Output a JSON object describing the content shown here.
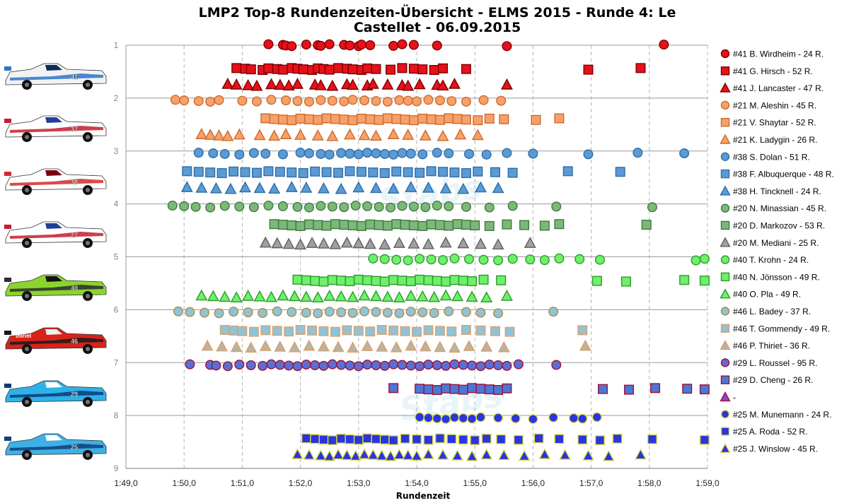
{
  "chart_data": {
    "type": "scatter",
    "title_line1": "LMP2 Top-8 Rundenzeiten-Übersicht - ELMS 2015 - Runde 4: Le",
    "title_line2": "Castellet - 06.09.2015",
    "xlabel": "Rundenzeit",
    "ylabel": "",
    "x_unit": "s",
    "xlim": [
      109,
      119
    ],
    "ylim": [
      1,
      9
    ],
    "y_reversed": true,
    "grid": true,
    "x_ticks": [
      "1:49,0",
      "1:50,0",
      "1:51,0",
      "1:52,0",
      "1:53,0",
      "1:54,0",
      "1:55,0",
      "1:56,0",
      "1:57,0",
      "1:58,0",
      "1:59,0"
    ],
    "y_ticks": [
      "1",
      "2",
      "3",
      "4",
      "5",
      "6",
      "7",
      "8",
      "9"
    ],
    "legend_position": "right",
    "watermark": "Stabs",
    "series": [
      {
        "name": "#41 B. Wirdheim - 24 R.",
        "y": 1.0,
        "marker": "circle",
        "fill": "#e8101a",
        "stroke": "#7a0000",
        "x": [
          111.45,
          111.7,
          111.75,
          111.85,
          112.1,
          112.3,
          112.35,
          112.5,
          112.75,
          112.85,
          113.0,
          113.05,
          113.2,
          113.6,
          113.75,
          113.95,
          114.35,
          115.55,
          118.25
        ]
      },
      {
        "name": "#41 G. Hirsch - 52 R.",
        "y": 1.45,
        "marker": "square",
        "fill": "#e8101a",
        "stroke": "#7a0000",
        "x": [
          110.9,
          111.05,
          111.15,
          111.35,
          111.45,
          111.6,
          111.7,
          111.85,
          111.95,
          112.05,
          112.2,
          112.3,
          112.4,
          112.5,
          112.65,
          112.8,
          112.9,
          113.05,
          113.15,
          113.3,
          113.55,
          113.75,
          113.95,
          114.1,
          114.3,
          114.45,
          114.85,
          116.95,
          117.85
        ]
      },
      {
        "name": "#41 J. Lancaster - 47 R.",
        "y": 1.75,
        "marker": "triangle",
        "fill": "#e8101a",
        "stroke": "#7a0000",
        "x": [
          110.75,
          110.9,
          111.1,
          111.25,
          111.5,
          111.65,
          111.8,
          111.95,
          112.25,
          112.35,
          112.55,
          112.8,
          112.9,
          113.15,
          113.25,
          113.5,
          113.75,
          113.85,
          114.05,
          114.35,
          114.45,
          114.65,
          115.55
        ]
      },
      {
        "name": "#21 M. Aleshin - 45 R.",
        "y": 2.05,
        "marker": "circle",
        "fill": "#f7a06a",
        "stroke": "#cc6b2a",
        "x": [
          109.85,
          110.0,
          110.25,
          110.45,
          110.6,
          111.0,
          111.25,
          111.5,
          111.75,
          111.95,
          112.15,
          112.35,
          112.55,
          112.75,
          112.9,
          113.1,
          113.3,
          113.5,
          113.7,
          113.85,
          114.0,
          114.2,
          114.4,
          114.6,
          114.85,
          115.15,
          115.45
        ]
      },
      {
        "name": "#21 V. Shaytar - 52 R.",
        "y": 2.4,
        "marker": "square",
        "fill": "#f7a06a",
        "stroke": "#cc6b2a",
        "x": [
          111.4,
          111.55,
          111.7,
          111.85,
          112.0,
          112.15,
          112.3,
          112.45,
          112.6,
          112.75,
          112.9,
          113.05,
          113.2,
          113.35,
          113.5,
          113.65,
          113.8,
          113.95,
          114.1,
          114.25,
          114.4,
          114.55,
          114.7,
          114.85,
          115.05,
          115.25,
          115.5,
          116.05,
          116.45
        ]
      },
      {
        "name": "#21 K. Ladygin - 26 R.",
        "y": 2.7,
        "marker": "triangle",
        "fill": "#f7a06a",
        "stroke": "#cc6b2a",
        "x": [
          110.3,
          110.45,
          110.6,
          110.75,
          110.95,
          111.3,
          111.55,
          111.75,
          112.0,
          112.3,
          112.55,
          112.85,
          113.1,
          113.3,
          113.6,
          113.85,
          114.15,
          114.45,
          114.75,
          115.05
        ]
      },
      {
        "name": "#38 S. Dolan - 51 R.",
        "y": 3.05,
        "marker": "circle",
        "fill": "#5b9bd5",
        "stroke": "#2e6da4",
        "x": [
          110.25,
          110.5,
          110.7,
          110.95,
          111.2,
          111.4,
          111.7,
          112.0,
          112.15,
          112.35,
          112.5,
          112.7,
          112.85,
          113.0,
          113.15,
          113.3,
          113.45,
          113.6,
          113.75,
          113.9,
          114.1,
          114.35,
          114.55,
          114.9,
          115.2,
          115.55,
          116.0,
          116.95,
          117.8,
          118.6
        ]
      },
      {
        "name": "#38 F. Albuquerque - 48 R.",
        "y": 3.4,
        "marker": "square",
        "fill": "#5b9bd5",
        "stroke": "#2e6da4",
        "x": [
          110.05,
          110.25,
          110.45,
          110.65,
          110.85,
          111.05,
          111.25,
          111.45,
          111.65,
          111.85,
          112.05,
          112.25,
          112.45,
          112.65,
          112.85,
          113.05,
          113.25,
          113.45,
          113.65,
          113.85,
          114.05,
          114.25,
          114.45,
          114.65,
          114.85,
          115.05,
          115.35,
          115.65,
          116.6,
          117.5
        ]
      },
      {
        "name": "#38 H. Tincknell - 24 R.",
        "y": 3.7,
        "marker": "triangle",
        "fill": "#5b9bd5",
        "stroke": "#2e6da4",
        "x": [
          110.05,
          110.3,
          110.55,
          110.8,
          111.05,
          111.3,
          111.55,
          111.85,
          112.1,
          112.4,
          112.7,
          113.0,
          113.3,
          113.6,
          113.9,
          114.2,
          114.5,
          114.8,
          115.1,
          115.4
        ]
      },
      {
        "name": "#20 N. Minassian - 45 R.",
        "y": 4.05,
        "marker": "circle",
        "fill": "#7bb87a",
        "stroke": "#3d7a3c",
        "x": [
          109.8,
          110.0,
          110.2,
          110.45,
          110.7,
          110.95,
          111.2,
          111.45,
          111.7,
          111.95,
          112.15,
          112.35,
          112.55,
          112.75,
          112.95,
          113.15,
          113.35,
          113.55,
          113.75,
          113.95,
          114.15,
          114.35,
          114.55,
          114.85,
          115.25,
          115.65,
          116.4,
          118.05
        ]
      },
      {
        "name": "#20 D. Markozov - 53 R.",
        "y": 4.4,
        "marker": "square",
        "fill": "#7bb87a",
        "stroke": "#3d7a3c",
        "x": [
          111.55,
          111.7,
          111.85,
          112.0,
          112.15,
          112.3,
          112.45,
          112.6,
          112.75,
          112.9,
          113.05,
          113.2,
          113.35,
          113.5,
          113.65,
          113.8,
          113.95,
          114.1,
          114.25,
          114.4,
          114.55,
          114.7,
          114.85,
          115.0,
          115.25,
          115.55,
          115.85,
          116.2,
          116.45,
          117.95
        ]
      },
      {
        "name": "#20 M. Mediani - 25 R.",
        "y": 4.75,
        "marker": "triangle",
        "fill": "#a0a0a0",
        "stroke": "#5f5f5f",
        "x": [
          111.4,
          111.6,
          111.8,
          112.0,
          112.2,
          112.4,
          112.6,
          112.8,
          113.0,
          113.2,
          113.45,
          113.7,
          113.95,
          114.2,
          114.5,
          114.8,
          115.1,
          115.4,
          115.95
        ]
      },
      {
        "name": "#40 T. Krohn - 24 R.",
        "y": 5.05,
        "marker": "circle",
        "fill": "#6ef06a",
        "stroke": "#2a9a2a",
        "x": [
          113.25,
          113.45,
          113.65,
          113.85,
          114.05,
          114.25,
          114.45,
          114.65,
          114.9,
          115.15,
          115.4,
          115.65,
          115.95,
          116.2,
          116.45,
          116.8,
          117.15,
          118.8,
          118.95
        ]
      },
      {
        "name": "#40 N. Jönsson - 49 R.",
        "y": 5.45,
        "marker": "square",
        "fill": "#6ef06a",
        "stroke": "#2a9a2a",
        "x": [
          111.95,
          112.1,
          112.25,
          112.4,
          112.55,
          112.7,
          112.85,
          113.0,
          113.15,
          113.3,
          113.45,
          113.6,
          113.75,
          113.9,
          114.05,
          114.2,
          114.35,
          114.5,
          114.65,
          114.8,
          114.95,
          115.15,
          115.45,
          117.1,
          117.6,
          118.6,
          118.95
        ]
      },
      {
        "name": "#40 O. Pla - 49 R.",
        "y": 5.75,
        "marker": "triangle",
        "fill": "#6ef06a",
        "stroke": "#2a9a2a",
        "x": [
          110.3,
          110.5,
          110.7,
          110.9,
          111.1,
          111.3,
          111.5,
          111.7,
          111.9,
          112.1,
          112.3,
          112.5,
          112.7,
          112.9,
          113.1,
          113.3,
          113.5,
          113.7,
          113.9,
          114.1,
          114.3,
          114.5,
          114.7,
          114.95,
          115.2,
          115.55
        ]
      },
      {
        "name": "#46 L. Badey - 37 R.",
        "y": 6.05,
        "marker": "circle",
        "fill": "#8fc3d6",
        "stroke": "#b08a45",
        "x": [
          109.9,
          110.1,
          110.35,
          110.6,
          110.85,
          111.1,
          111.35,
          111.6,
          111.85,
          112.1,
          112.3,
          112.5,
          112.7,
          112.9,
          113.1,
          113.3,
          113.5,
          113.7,
          113.9,
          114.1,
          114.3,
          114.55,
          114.85,
          115.1,
          115.4,
          116.35
        ]
      },
      {
        "name": "#46 T. Gommendy - 49 R.",
        "y": 6.4,
        "marker": "square",
        "fill": "#8fc3d6",
        "stroke": "#e0a06a",
        "x": [
          110.7,
          110.85,
          111.0,
          111.2,
          111.4,
          111.6,
          111.8,
          112.0,
          112.2,
          112.4,
          112.6,
          112.8,
          113.0,
          113.2,
          113.4,
          113.6,
          113.8,
          114.0,
          114.2,
          114.4,
          114.6,
          114.85,
          115.1,
          115.35,
          115.6,
          116.85
        ]
      },
      {
        "name": "#46 P. Thiriet - 36 R.",
        "y": 6.7,
        "marker": "triangle",
        "fill": "#b5b5a3",
        "stroke": "#e0a06a",
        "x": [
          110.4,
          110.65,
          110.9,
          111.15,
          111.4,
          111.65,
          111.9,
          112.15,
          112.4,
          112.65,
          112.9,
          113.15,
          113.4,
          113.65,
          113.9,
          114.15,
          114.4,
          114.65,
          114.9,
          115.2,
          115.5,
          116.9
        ]
      },
      {
        "name": "#29 L. Roussel - 95 R.",
        "y": 7.05,
        "marker": "circle",
        "fill": "#5a6fd6",
        "stroke": "#a01030",
        "x": [
          110.1,
          110.45,
          110.55,
          110.75,
          110.95,
          111.15,
          111.35,
          111.5,
          111.65,
          111.8,
          111.95,
          112.1,
          112.25,
          112.4,
          112.55,
          112.7,
          112.85,
          113.0,
          113.15,
          113.3,
          113.45,
          113.6,
          113.75,
          113.9,
          114.05,
          114.2,
          114.35,
          114.5,
          114.65,
          114.8,
          114.95,
          115.1,
          115.25,
          115.4,
          115.55,
          115.75,
          116.4
        ]
      },
      {
        "name": "#29 D. Cheng - 26 R.",
        "y": 7.5,
        "marker": "square",
        "fill": "#4a78d8",
        "stroke": "#a01030",
        "x": [
          113.6,
          114.05,
          114.2,
          114.35,
          114.5,
          114.65,
          114.8,
          114.95,
          115.1,
          115.25,
          115.4,
          115.55,
          117.2,
          117.65,
          118.1,
          118.65,
          118.95
        ]
      },
      {
        "name": "-",
        "y": null,
        "marker": "triangle",
        "fill": "#7a4fd0",
        "stroke": "#c00040",
        "x": []
      },
      {
        "name": "#25 M. Munemann - 24 R.",
        "y": 8.05,
        "marker": "circle",
        "fill": "#2a35e0",
        "stroke": "#e0e040",
        "x": [
          114.05,
          114.2,
          114.35,
          114.5,
          114.65,
          114.8,
          114.95,
          115.1,
          115.4,
          115.7,
          116.0,
          116.35,
          116.7,
          116.85,
          117.1
        ]
      },
      {
        "name": "#25 A. Roda - 52 R.",
        "y": 8.45,
        "marker": "square",
        "fill": "#2a35e0",
        "stroke": "#e0e040",
        "x": [
          112.1,
          112.25,
          112.4,
          112.55,
          112.7,
          112.85,
          113.0,
          113.15,
          113.3,
          113.45,
          113.6,
          113.8,
          114.0,
          114.2,
          114.4,
          114.6,
          114.8,
          115.0,
          115.2,
          115.45,
          115.75,
          116.1,
          116.45,
          116.85,
          117.15,
          117.45,
          118.05,
          118.95
        ]
      },
      {
        "name": "#25 J. Winslow - 45 R.",
        "y": 8.75,
        "marker": "triangle",
        "fill": "#2a35e0",
        "stroke": "#e0e040",
        "x": [
          111.95,
          112.15,
          112.35,
          112.5,
          112.65,
          112.8,
          112.95,
          113.1,
          113.25,
          113.4,
          113.55,
          113.7,
          113.85,
          114.0,
          114.2,
          114.45,
          114.7,
          114.95,
          115.2,
          115.5,
          115.85,
          116.2,
          116.55,
          116.95,
          117.3,
          117.85
        ]
      }
    ]
  },
  "cars": [
    {
      "number": "41",
      "body": "#f2f2f2",
      "accent": "#2b74c9",
      "stripe": "#0c2a60"
    },
    {
      "number": "37",
      "body": "#ffffff",
      "accent": "#c61c2e",
      "stripe": "#1f3f9a"
    },
    {
      "number": "38",
      "body": "#ffffff",
      "accent": "#d42a2a",
      "stripe": "#7a0010"
    },
    {
      "number": "27",
      "body": "#ffffff",
      "accent": "#c61c2e",
      "stripe": "#1f3f9a"
    },
    {
      "number": "40",
      "body": "#8bd42f",
      "accent": "#2b2b2b",
      "stripe": "#111111"
    },
    {
      "number": "46",
      "body": "#d8231a",
      "accent": "#1a1a1a",
      "stripe": "#f0f0f0",
      "label": "thiriet"
    },
    {
      "number": "29",
      "body": "#2db2e8",
      "accent": "#0a3a78",
      "stripe": "#ffffff"
    },
    {
      "number": "25",
      "body": "#3fb0e6",
      "accent": "#0f3f7a",
      "stripe": "#ffffff"
    }
  ]
}
